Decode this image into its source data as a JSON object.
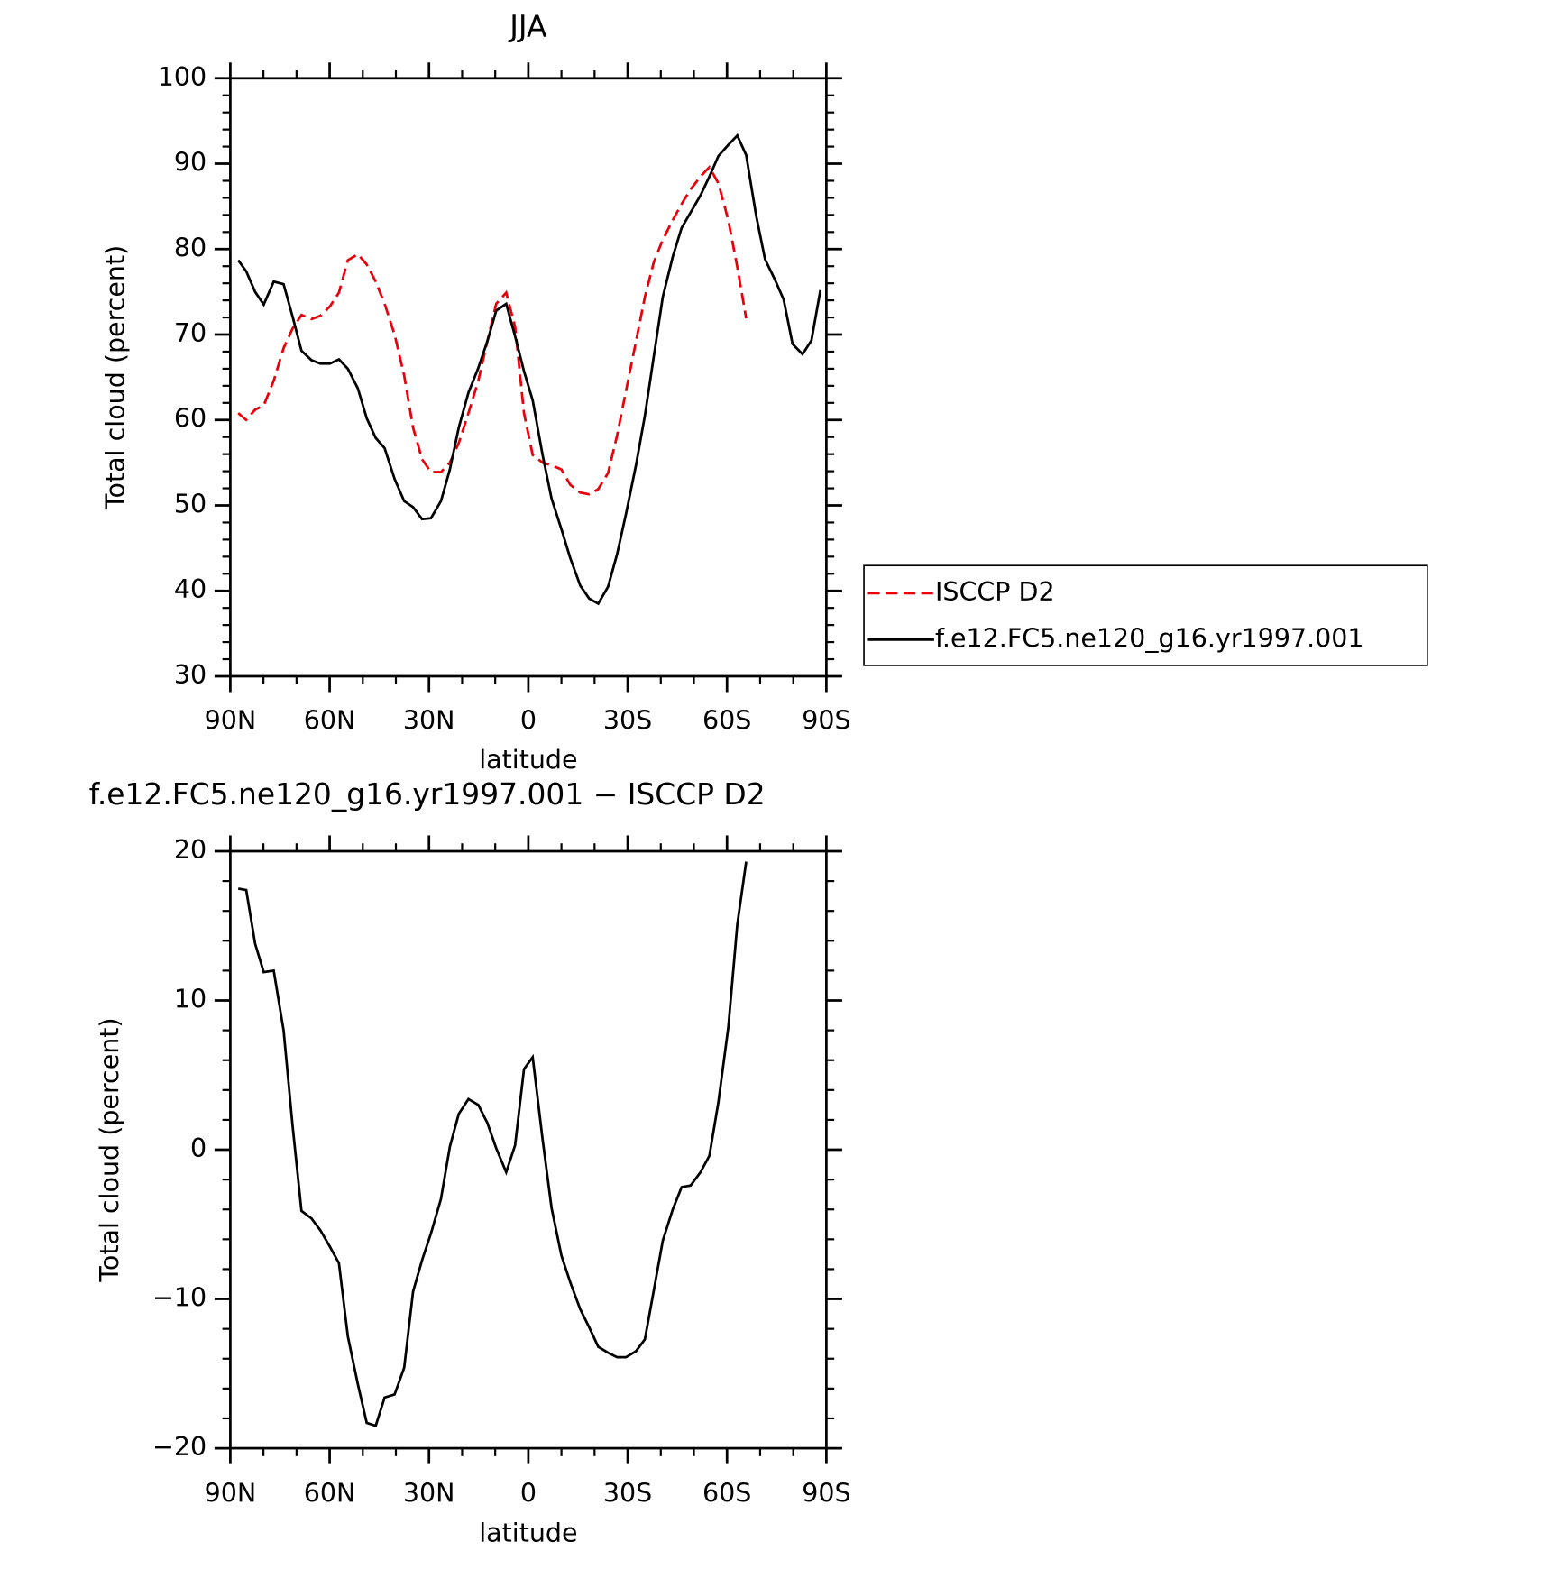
{
  "chart_data": [
    {
      "type": "line",
      "title": "JJA",
      "xlabel": "latitude",
      "ylabel": "Total cloud (percent)",
      "x": [
        87.6,
        85.2,
        82.5,
        79.9,
        76.9,
        73.9,
        71.2,
        68.5,
        65.5,
        62.8,
        59.9,
        57.2,
        54.5,
        51.5,
        48.8,
        46.1,
        43.4,
        40.4,
        37.5,
        34.8,
        32.1,
        29.4,
        26.4,
        23.7,
        21.0,
        18.1,
        15.1,
        12.4,
        9.7,
        6.7,
        4.0,
        1.3,
        -1.3,
        -4.3,
        -7.0,
        -10.0,
        -12.7,
        -15.7,
        -18.4,
        -21.1,
        -24.1,
        -26.8,
        -29.5,
        -32.5,
        -35.2,
        -37.9,
        -40.6,
        -43.6,
        -46.3,
        -49.0,
        -52.0,
        -54.7,
        -57.4,
        -60.4,
        -63.1,
        -65.8,
        -68.8,
        -71.5,
        -74.5,
        -77.1,
        -79.8,
        -82.8,
        -85.5,
        -88.2
      ],
      "xlim": [
        90,
        -90
      ],
      "xticks": [
        {
          "value": 90,
          "label": "90N"
        },
        {
          "value": 60,
          "label": "60N"
        },
        {
          "value": 30,
          "label": "30N"
        },
        0,
        {
          "value": -30,
          "label": "30S"
        },
        {
          "value": -60,
          "label": "60S"
        },
        {
          "value": -90,
          "label": "90S"
        }
      ],
      "ylim": [
        30,
        100
      ],
      "yticks": [
        30,
        40,
        50,
        60,
        70,
        80,
        90,
        100
      ],
      "legend": "outside-right",
      "series": [
        {
          "name": "ISCCP D2",
          "color": "#e8000b",
          "style": "dashed",
          "values": [
            60.8,
            60.0,
            61.2,
            61.7,
            64.6,
            68.4,
            70.7,
            72.3,
            71.8,
            72.2,
            73.3,
            74.9,
            78.7,
            79.4,
            78.2,
            76.2,
            73.6,
            70.0,
            65.2,
            59.1,
            55.4,
            53.9,
            53.9,
            55.0,
            57.3,
            60.8,
            64.6,
            69.2,
            73.6,
            74.9,
            70.9,
            60.8,
            55.9,
            55.0,
            54.7,
            54.2,
            52.4,
            51.5,
            51.3,
            51.9,
            53.8,
            58.2,
            63.4,
            69.2,
            74.4,
            78.5,
            81.1,
            83.4,
            85.3,
            87.0,
            88.5,
            89.6,
            87.7,
            83.4,
            77.9,
            71.9,
            null,
            null,
            null,
            null,
            null,
            null,
            null,
            null
          ]
        },
        {
          "name": "f.e12.FC5.ne120_g16.yr1997.001",
          "color": "#000000",
          "style": "solid",
          "values": [
            78.7,
            77.4,
            75.0,
            73.5,
            76.2,
            75.9,
            72.1,
            68.1,
            67.0,
            66.6,
            66.6,
            67.1,
            66.0,
            63.7,
            60.2,
            57.9,
            56.7,
            53.1,
            50.5,
            49.8,
            48.4,
            48.5,
            50.5,
            54.2,
            59.1,
            63.2,
            66.1,
            69.2,
            72.8,
            73.6,
            69.8,
            65.7,
            62.3,
            55.9,
            50.8,
            47.2,
            43.8,
            40.6,
            39.1,
            38.5,
            40.5,
            44.3,
            49.0,
            54.7,
            60.5,
            67.5,
            74.4,
            79.1,
            82.5,
            84.3,
            86.3,
            88.5,
            90.9,
            92.2,
            93.3,
            91.0,
            83.9,
            78.8,
            76.4,
            74.1,
            68.9,
            67.7,
            69.3,
            75.2
          ]
        }
      ]
    },
    {
      "type": "line",
      "title": "f.e12.FC5.ne120_g16.yr1997.001 − ISCCP D2",
      "xlabel": "latitude",
      "ylabel": "Total cloud (percent)",
      "x": [
        87.6,
        85.2,
        82.5,
        79.9,
        76.9,
        73.9,
        71.2,
        68.5,
        65.5,
        62.8,
        59.9,
        57.2,
        54.5,
        51.5,
        48.8,
        46.1,
        43.4,
        40.4,
        37.5,
        34.8,
        32.1,
        29.4,
        26.4,
        23.7,
        21.0,
        18.1,
        15.1,
        12.4,
        9.7,
        6.7,
        4.0,
        1.3,
        -1.3,
        -4.3,
        -7.0,
        -10.0,
        -12.7,
        -15.7,
        -18.4,
        -21.1,
        -24.1,
        -26.8,
        -29.5,
        -32.5,
        -35.2,
        -37.9,
        -40.6,
        -43.6,
        -46.3,
        -49.0,
        -52.0,
        -54.7,
        -57.4,
        -60.4,
        -63.1,
        -65.8
      ],
      "xlim": [
        90,
        -90
      ],
      "xticks": [
        {
          "value": 90,
          "label": "90N"
        },
        {
          "value": 60,
          "label": "60N"
        },
        {
          "value": 30,
          "label": "30N"
        },
        0,
        {
          "value": -30,
          "label": "30S"
        },
        {
          "value": -60,
          "label": "60S"
        },
        {
          "value": -90,
          "label": "90S"
        }
      ],
      "ylim": [
        -20,
        20
      ],
      "yticks": [
        {
          "value": -20,
          "label": "−20"
        },
        {
          "value": -10,
          "label": "−10"
        },
        0,
        10,
        20
      ],
      "series": [
        {
          "color": "#000000",
          "style": "solid",
          "values": [
            17.5,
            17.4,
            13.8,
            11.9,
            12.0,
            8.0,
            1.6,
            -4.1,
            -4.6,
            -5.4,
            -6.5,
            -7.6,
            -12.5,
            -15.7,
            -18.3,
            -18.5,
            -16.6,
            -16.4,
            -14.6,
            -9.5,
            -7.4,
            -5.6,
            -3.3,
            0.2,
            2.4,
            3.4,
            3.0,
            1.8,
            0.1,
            -1.5,
            0.3,
            5.4,
            6.2,
            0.7,
            -3.9,
            -7.1,
            -8.9,
            -10.7,
            -11.9,
            -13.2,
            -13.6,
            -13.9,
            -13.9,
            -13.5,
            -12.7,
            -9.4,
            -6.1,
            -4.0,
            -2.5,
            -2.4,
            -1.5,
            -0.4,
            3.2,
            8.2,
            15.1,
            19.3
          ]
        }
      ]
    }
  ]
}
